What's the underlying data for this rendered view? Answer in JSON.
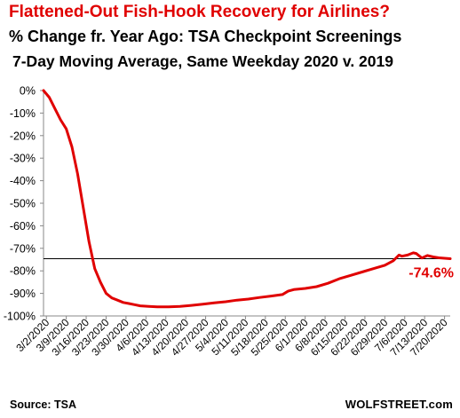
{
  "chart_data": {
    "type": "line",
    "title": "Flattened-Out Fish-Hook Recovery for Airlines?",
    "subtitle": "% Change fr. Year Ago: TSA Checkpoint Screenings",
    "subtitle2": "7-Day Moving Average, Same Weekday 2020 v. 2019",
    "xlabel": "",
    "ylabel": "",
    "ylim": [
      -100,
      0
    ],
    "y_ticks": [
      "0%",
      "-10%",
      "-20%",
      "-30%",
      "-40%",
      "-50%",
      "-60%",
      "-70%",
      "-80%",
      "-90%",
      "-100%"
    ],
    "x_ticks": [
      "3/2/2020",
      "3/9/2020",
      "3/16/2020",
      "3/23/2020",
      "3/30/2020",
      "4/6/2020",
      "4/13/2020",
      "4/20/2020",
      "4/27/2020",
      "5/4/2020",
      "5/11/2020",
      "5/18/2020",
      "5/25/2020",
      "6/1/2020",
      "6/8/2020",
      "6/15/2020",
      "6/22/2020",
      "6/29/2020",
      "7/6/2020",
      "7/13/2020",
      "7/20/2020"
    ],
    "x_start": "2020-03-01",
    "x_end": "2020-07-22",
    "grid": false,
    "reference_line": -74.6,
    "end_label": "-74.6%",
    "line_color": "#e00000",
    "series": [
      {
        "x": [
          "2020-03-01",
          "2020-03-03",
          "2020-03-05",
          "2020-03-07",
          "2020-03-09",
          "2020-03-11",
          "2020-03-13",
          "2020-03-15",
          "2020-03-17",
          "2020-03-19",
          "2020-03-21",
          "2020-03-23",
          "2020-03-25",
          "2020-03-27",
          "2020-03-29",
          "2020-03-31",
          "2020-04-02",
          "2020-04-04",
          "2020-04-07",
          "2020-04-10",
          "2020-04-14",
          "2020-04-18",
          "2020-04-22",
          "2020-04-26",
          "2020-04-30",
          "2020-05-04",
          "2020-05-08",
          "2020-05-12",
          "2020-05-16",
          "2020-05-20",
          "2020-05-24",
          "2020-05-26",
          "2020-05-28",
          "2020-06-01",
          "2020-06-05",
          "2020-06-09",
          "2020-06-13",
          "2020-06-17",
          "2020-06-21",
          "2020-06-25",
          "2020-06-29",
          "2020-07-02",
          "2020-07-04",
          "2020-07-05",
          "2020-07-07",
          "2020-07-09",
          "2020-07-10",
          "2020-07-12",
          "2020-07-14",
          "2020-07-16",
          "2020-07-18",
          "2020-07-20",
          "2020-07-22"
        ],
        "y": [
          0,
          -3,
          -8,
          -13,
          -17,
          -25,
          -37,
          -52,
          -67,
          -79,
          -85,
          -90,
          -92,
          -93,
          -94,
          -94.5,
          -95,
          -95.5,
          -95.8,
          -96,
          -96,
          -95.8,
          -95.3,
          -94.8,
          -94.2,
          -93.7,
          -93,
          -92.5,
          -91.8,
          -91.2,
          -90.5,
          -89,
          -88.3,
          -87.8,
          -87,
          -85.5,
          -83.5,
          -82,
          -80.5,
          -79,
          -77.5,
          -75.5,
          -73,
          -73.5,
          -73,
          -72,
          -72.3,
          -74.3,
          -73.2,
          -73.8,
          -74.2,
          -74.4,
          -74.6
        ]
      }
    ]
  },
  "footer": {
    "source": "Source: TSA",
    "brand": "WOLFSTREET.com"
  }
}
